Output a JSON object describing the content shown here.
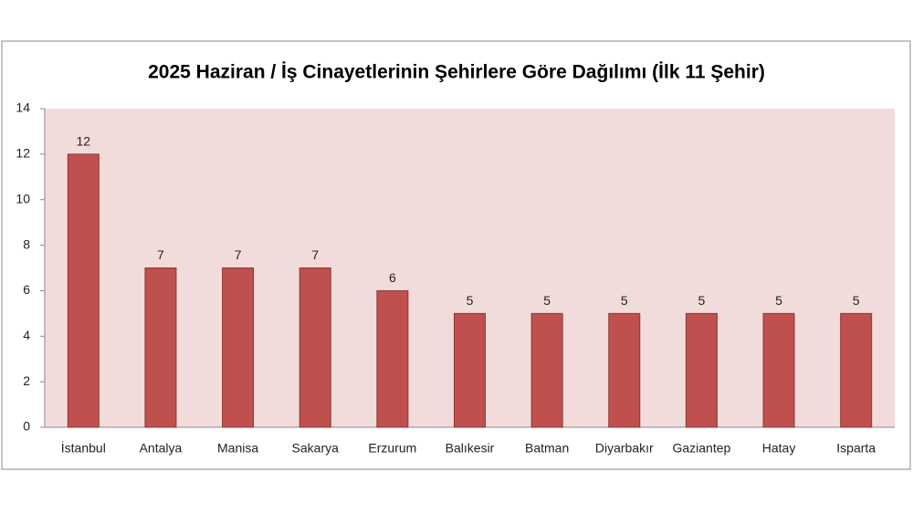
{
  "chart_data": {
    "type": "bar",
    "title": "2025 Haziran / İş Cinayetlerinin Şehirlere Göre Dağılımı (İlk 11 Şehir)",
    "categories": [
      "İstanbul",
      "Antalya",
      "Manisa",
      "Sakarya",
      "Erzurum",
      "Balıkesir",
      "Batman",
      "Diyarbakır",
      "Gaziantep",
      "Hatay",
      "Isparta"
    ],
    "values": [
      12,
      7,
      7,
      7,
      6,
      5,
      5,
      5,
      5,
      5,
      5
    ],
    "color": "#c0504d",
    "ylim": [
      0,
      14
    ],
    "yticks": [
      0,
      2,
      4,
      6,
      8,
      10,
      12,
      14
    ],
    "grid": false
  }
}
